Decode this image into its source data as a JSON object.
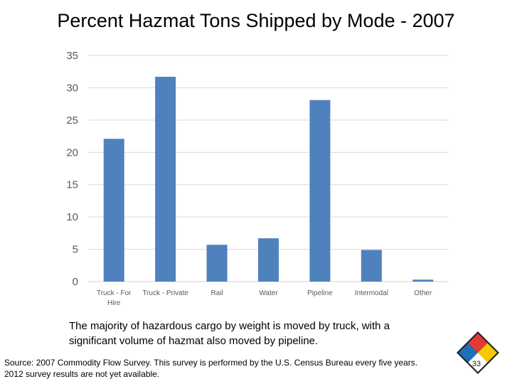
{
  "slide": {
    "title": "Percent Hazmat Tons Shipped by Mode - 2007",
    "caption": "The majority of hazardous cargo by weight is moved by truck, with a significant volume of hazmat also moved by pipeline.",
    "source_line1": "Source: 2007 Commodity Flow Survey. This survey is performed by the U.S. Census Bureau every five years.",
    "source_line2": "2012 survey results are not yet available.",
    "page_number": "33"
  },
  "colors": {
    "bar": "#4f81bd",
    "grid": "#d9d9d9",
    "axis_text": "#595959",
    "logo_red": "#e53935",
    "logo_blue": "#1e6fb8",
    "logo_yellow": "#f6c900",
    "logo_white": "#ffffff"
  },
  "chart_data": {
    "type": "bar",
    "title": "",
    "xlabel": "",
    "ylabel": "",
    "categories": [
      "Truck - For Hire",
      "Truck - Private",
      "Rail",
      "Water",
      "Pipeline",
      "Intermodal",
      "Other"
    ],
    "values": [
      22.1,
      31.7,
      5.7,
      6.7,
      28.1,
      4.9,
      0.3
    ],
    "ylim": [
      0,
      35
    ],
    "yticks": [
      0,
      5,
      10,
      15,
      20,
      25,
      30,
      35
    ],
    "grid": true,
    "legend": "none"
  }
}
